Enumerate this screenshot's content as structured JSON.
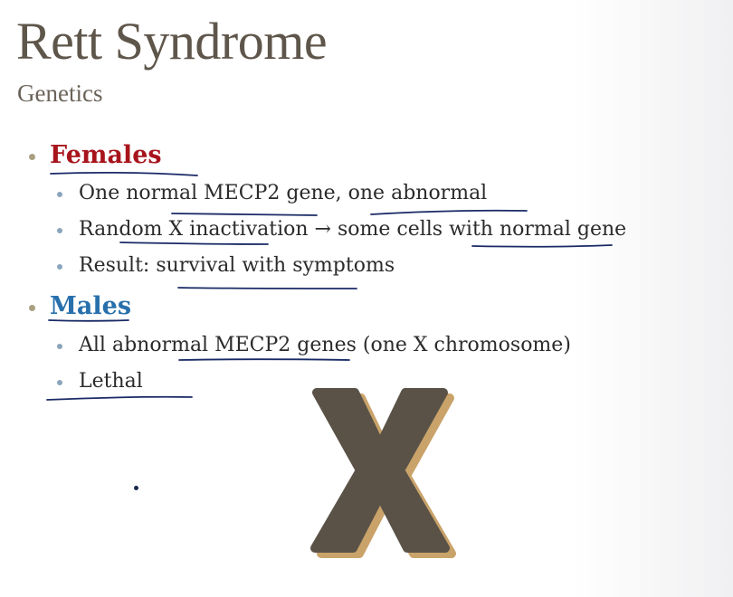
{
  "slide": {
    "title": "Rett Syndrome",
    "subtitle": "Genetics",
    "sections": [
      {
        "heading": "Females",
        "heading_color": "#a8141c",
        "points": [
          "One normal MECP2 gene, one abnormal",
          "Random X inactivation → some cells with normal gene",
          "Result: survival with symptoms"
        ]
      },
      {
        "heading": "Males",
        "heading_color": "#2870ac",
        "points": [
          "All abnormal MECP2 genes (one X chromosome)",
          "Lethal"
        ]
      }
    ],
    "graphic": {
      "letter": "X",
      "fill_color": "#5a5247",
      "shadow_color": "#c9a36a"
    },
    "annotation_ink_color": "#1a2a66"
  }
}
